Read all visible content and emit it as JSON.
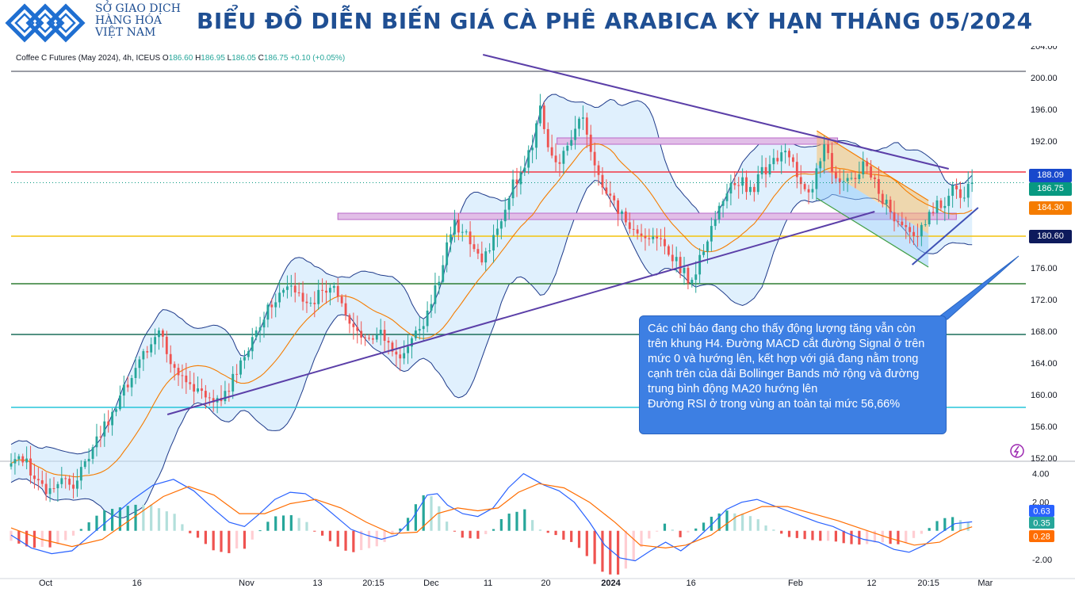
{
  "header": {
    "logo_line1": "SỞ GIAO DỊCH",
    "logo_line2": "HÀNG HÓA",
    "logo_line3": "VIỆT NAM",
    "title": "BIỂU ĐỒ DIỄN BIẾN GIÁ CÀ PHÊ ARABICA KỲ HẠN THÁNG 05/2024"
  },
  "symbol": {
    "name": "Coffee C Futures (May 2024), 4h, ICEUS",
    "o_label": "O",
    "o_value": "186.60",
    "h_label": "H",
    "h_value": "186.95",
    "l_label": "L",
    "l_value": "186.05",
    "c_label": "C",
    "c_value": "186.75",
    "change": "+0.10 (+0.05%)"
  },
  "annotation": "Các chỉ báo đang cho thấy động lượng tăng vẫn còn trên khung H4. Đường MACD cắt đường Signal ở trên mức 0 và hướng lên, kết hợp với giá đang nằm trong cạnh trên của dải Bollinger Bands mở rộng và đường trung bình động MA20 hướng lên\nĐường RSI ở trong vùng an toàn tại mức 56,66%",
  "colors": {
    "up": "#26a69a",
    "down": "#ef5350",
    "title": "#1f4f93",
    "band_fill": "#bbdefb",
    "trendline": "#5b3fa8",
    "annotation_bg": "#3d7fe3"
  },
  "chart_data": {
    "type": "candlestick",
    "interval": "4h",
    "price_axis": {
      "min": 152,
      "max": 204,
      "ticks": [
        "204.00",
        "200.00",
        "196.00",
        "192.00",
        "188.00",
        "184.00",
        "180.00",
        "176.00",
        "172.00",
        "168.00",
        "164.00",
        "160.00",
        "156.00",
        "152.00"
      ]
    },
    "time_axis": {
      "labels": [
        "Oct",
        "16",
        "Nov",
        "13",
        "20:15",
        "Dec",
        "11",
        "20",
        "2024",
        "16",
        "Feb",
        "12",
        "20:15",
        "Mar"
      ]
    },
    "price_labels": [
      {
        "value": "188.09",
        "color": "#1848cc",
        "price": 188.09
      },
      {
        "value": "186.75",
        "color": "#089981",
        "price": 186.75
      },
      {
        "value": "184.30",
        "color": "#f57c00",
        "price": 184.3
      },
      {
        "value": "180.60",
        "color": "#0d1a5c",
        "price": 180.6
      }
    ],
    "horizontal_levels": [
      {
        "price": 200.8,
        "color": "#787b86"
      },
      {
        "price": 188.1,
        "color": "#f23645"
      },
      {
        "price": 180.0,
        "color": "#f4c20d"
      },
      {
        "price": 174.0,
        "color": "#2e7d32"
      },
      {
        "price": 167.6,
        "color": "#1b6e5a"
      },
      {
        "price": 158.4,
        "color": "#26c6da"
      }
    ],
    "zones": [
      {
        "t0": 0.538,
        "t1": 0.8145,
        "p0": 191.6,
        "p1": 192.4
      },
      {
        "t0": 0.322,
        "t1": 0.9315,
        "p0": 182.1,
        "p1": 182.9
      }
    ],
    "trendlines": [
      {
        "t0": 0.465,
        "p0": 202.9,
        "t1": 0.924,
        "p1": 188.5
      },
      {
        "t0": 0.154,
        "p0": 157.5,
        "t1": 0.851,
        "p1": 183.1
      },
      {
        "t0": 0.888,
        "p0": 176.4,
        "t1": 0.953,
        "p1": 183.6
      }
    ],
    "descending_channel": {
      "upper": [
        [
          0.794,
          193.3
        ],
        [
          0.904,
          184.5
        ]
      ],
      "lower": [
        [
          0.794,
          184.8
        ],
        [
          0.904,
          176.1
        ]
      ]
    },
    "series_close": [
      [
        0.0,
        151.0
      ],
      [
        0.01,
        152.5
      ],
      [
        0.02,
        150.0
      ],
      [
        0.03,
        148.0
      ],
      [
        0.04,
        147.5
      ],
      [
        0.05,
        149.0
      ],
      [
        0.06,
        148.0
      ],
      [
        0.07,
        151.0
      ],
      [
        0.085,
        154.5
      ],
      [
        0.1,
        157.5
      ],
      [
        0.115,
        161.5
      ],
      [
        0.13,
        165.0
      ],
      [
        0.14,
        167.0
      ],
      [
        0.148,
        168.5
      ],
      [
        0.156,
        164.0
      ],
      [
        0.165,
        163.0
      ],
      [
        0.175,
        162.0
      ],
      [
        0.185,
        160.0
      ],
      [
        0.195,
        159.0
      ],
      [
        0.205,
        159.5
      ],
      [
        0.215,
        161.0
      ],
      [
        0.225,
        163.5
      ],
      [
        0.235,
        166.5
      ],
      [
        0.245,
        169.0
      ],
      [
        0.255,
        171.5
      ],
      [
        0.265,
        173.0
      ],
      [
        0.275,
        174.0
      ],
      [
        0.285,
        172.5
      ],
      [
        0.295,
        171.0
      ],
      [
        0.305,
        173.0
      ],
      [
        0.315,
        174.0
      ],
      [
        0.325,
        171.5
      ],
      [
        0.335,
        168.5
      ],
      [
        0.345,
        167.0
      ],
      [
        0.355,
        166.5
      ],
      [
        0.365,
        167.5
      ],
      [
        0.375,
        166.0
      ],
      [
        0.385,
        165.0
      ],
      [
        0.395,
        166.5
      ],
      [
        0.405,
        169.0
      ],
      [
        0.415,
        172.0
      ],
      [
        0.425,
        176.0
      ],
      [
        0.435,
        181.5
      ],
      [
        0.445,
        181.0
      ],
      [
        0.455,
        178.0
      ],
      [
        0.465,
        177.0
      ],
      [
        0.475,
        180.0
      ],
      [
        0.485,
        183.0
      ],
      [
        0.495,
        186.5
      ],
      [
        0.505,
        188.5
      ],
      [
        0.515,
        192.0
      ],
      [
        0.52,
        197.5
      ],
      [
        0.528,
        192.0
      ],
      [
        0.538,
        189.5
      ],
      [
        0.548,
        191.0
      ],
      [
        0.558,
        195.0
      ],
      [
        0.566,
        194.0
      ],
      [
        0.575,
        188.5
      ],
      [
        0.585,
        186.0
      ],
      [
        0.595,
        184.0
      ],
      [
        0.605,
        182.0
      ],
      [
        0.615,
        180.5
      ],
      [
        0.625,
        180.0
      ],
      [
        0.635,
        179.5
      ],
      [
        0.645,
        178.5
      ],
      [
        0.655,
        177.0
      ],
      [
        0.665,
        175.0
      ],
      [
        0.672,
        174.0
      ],
      [
        0.68,
        177.5
      ],
      [
        0.69,
        180.5
      ],
      [
        0.7,
        184.5
      ],
      [
        0.71,
        186.5
      ],
      [
        0.72,
        187.0
      ],
      [
        0.73,
        185.5
      ],
      [
        0.74,
        188.0
      ],
      [
        0.75,
        189.5
      ],
      [
        0.76,
        190.5
      ],
      [
        0.77,
        189.0
      ],
      [
        0.78,
        186.5
      ],
      [
        0.79,
        186.0
      ],
      [
        0.8,
        191.5
      ],
      [
        0.81,
        188.0
      ],
      [
        0.82,
        186.5
      ],
      [
        0.83,
        187.5
      ],
      [
        0.84,
        189.0
      ],
      [
        0.85,
        187.0
      ],
      [
        0.86,
        184.5
      ],
      [
        0.87,
        182.5
      ],
      [
        0.88,
        180.5
      ],
      [
        0.89,
        180.0
      ],
      [
        0.9,
        181.5
      ],
      [
        0.91,
        183.5
      ],
      [
        0.92,
        184.5
      ],
      [
        0.928,
        186.0
      ],
      [
        0.936,
        185.0
      ],
      [
        0.944,
        186.5
      ],
      [
        0.947,
        186.75
      ]
    ],
    "macd_axis": {
      "min": -2.9,
      "max": 4.7,
      "ticks": [
        "4.00",
        "2.00",
        "-2.00"
      ]
    },
    "macd_labels": [
      {
        "value": "0.63",
        "color": "#2962ff",
        "macd": 0.63
      },
      {
        "value": "0.35",
        "color": "#26a69a",
        "macd": 0.35
      },
      {
        "value": "0.28",
        "color": "#ff6d00",
        "macd": 0.28
      }
    ],
    "macd_series": [
      {
        "name": "MACD",
        "color": "#2962ff",
        "values": [
          [
            0.0,
            -0.3
          ],
          [
            0.02,
            -1.2
          ],
          [
            0.04,
            -1.6
          ],
          [
            0.06,
            -1.4
          ],
          [
            0.08,
            -0.2
          ],
          [
            0.1,
            1.0
          ],
          [
            0.12,
            2.2
          ],
          [
            0.14,
            3.2
          ],
          [
            0.16,
            3.6
          ],
          [
            0.18,
            2.8
          ],
          [
            0.2,
            1.5
          ],
          [
            0.215,
            0.6
          ],
          [
            0.23,
            0.3
          ],
          [
            0.245,
            1.2
          ],
          [
            0.26,
            2.2
          ],
          [
            0.275,
            2.7
          ],
          [
            0.29,
            2.6
          ],
          [
            0.305,
            1.9
          ],
          [
            0.32,
            1.0
          ],
          [
            0.335,
            0.1
          ],
          [
            0.35,
            -0.3
          ],
          [
            0.365,
            -0.6
          ],
          [
            0.38,
            -0.3
          ],
          [
            0.395,
            0.8
          ],
          [
            0.41,
            2.5
          ],
          [
            0.42,
            2.6
          ],
          [
            0.43,
            1.8
          ],
          [
            0.445,
            1.2
          ],
          [
            0.46,
            1.0
          ],
          [
            0.475,
            1.6
          ],
          [
            0.49,
            3.0
          ],
          [
            0.505,
            4.0
          ],
          [
            0.515,
            3.6
          ],
          [
            0.525,
            3.2
          ],
          [
            0.54,
            2.8
          ],
          [
            0.555,
            2.0
          ],
          [
            0.57,
            0.6
          ],
          [
            0.585,
            -1.0
          ],
          [
            0.6,
            -1.9
          ],
          [
            0.615,
            -2.1
          ],
          [
            0.63,
            -1.4
          ],
          [
            0.645,
            -0.8
          ],
          [
            0.66,
            -1.4
          ],
          [
            0.675,
            -0.6
          ],
          [
            0.69,
            0.4
          ],
          [
            0.705,
            1.5
          ],
          [
            0.72,
            2.0
          ],
          [
            0.735,
            2.2
          ],
          [
            0.75,
            1.8
          ],
          [
            0.765,
            1.4
          ],
          [
            0.78,
            1.0
          ],
          [
            0.795,
            0.6
          ],
          [
            0.81,
            0.3
          ],
          [
            0.825,
            -0.2
          ],
          [
            0.84,
            -0.6
          ],
          [
            0.855,
            -0.8
          ],
          [
            0.87,
            -1.3
          ],
          [
            0.885,
            -1.5
          ],
          [
            0.9,
            -1.0
          ],
          [
            0.915,
            -0.2
          ],
          [
            0.93,
            0.5
          ],
          [
            0.947,
            0.63
          ]
        ]
      },
      {
        "name": "Signal",
        "color": "#ff6d00",
        "values": [
          [
            0.0,
            0.2
          ],
          [
            0.03,
            -0.6
          ],
          [
            0.06,
            -1.1
          ],
          [
            0.09,
            -0.6
          ],
          [
            0.12,
            0.9
          ],
          [
            0.15,
            2.4
          ],
          [
            0.175,
            3.1
          ],
          [
            0.2,
            2.5
          ],
          [
            0.225,
            1.2
          ],
          [
            0.25,
            1.2
          ],
          [
            0.275,
            1.9
          ],
          [
            0.3,
            2.2
          ],
          [
            0.325,
            1.6
          ],
          [
            0.35,
            0.6
          ],
          [
            0.375,
            -0.2
          ],
          [
            0.4,
            -0.1
          ],
          [
            0.42,
            1.2
          ],
          [
            0.44,
            1.6
          ],
          [
            0.46,
            1.4
          ],
          [
            0.48,
            1.6
          ],
          [
            0.5,
            2.7
          ],
          [
            0.52,
            3.3
          ],
          [
            0.545,
            3.0
          ],
          [
            0.57,
            2.0
          ],
          [
            0.595,
            0.6
          ],
          [
            0.62,
            -1.0
          ],
          [
            0.645,
            -1.2
          ],
          [
            0.665,
            -1.0
          ],
          [
            0.69,
            -0.3
          ],
          [
            0.715,
            1.0
          ],
          [
            0.74,
            1.7
          ],
          [
            0.765,
            1.7
          ],
          [
            0.79,
            1.2
          ],
          [
            0.815,
            0.7
          ],
          [
            0.84,
            0.1
          ],
          [
            0.865,
            -0.5
          ],
          [
            0.89,
            -1.0
          ],
          [
            0.915,
            -0.8
          ],
          [
            0.935,
            0.0
          ],
          [
            0.947,
            0.28
          ]
        ]
      }
    ],
    "macd_histogram_note": "histogram bars colored green above zero, red below zero"
  }
}
